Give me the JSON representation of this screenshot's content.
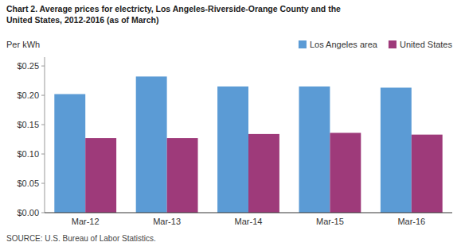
{
  "chart_data": {
    "type": "bar",
    "title": "Chart 2. Average prices for electricty, Los Angeles-Riverside-Orange County and the\nUnited States, 2012-2016 (as of March)",
    "ylabel": "Per kWh",
    "annotations": [
      "SOURCE: U.S. Bureau of Labor Statistics."
    ],
    "categories": [
      "Mar-12",
      "Mar-13",
      "Mar-14",
      "Mar-15",
      "Mar-16"
    ],
    "series": [
      {
        "name": "Los Angeles area",
        "color": "#5B9BD5",
        "values": [
          0.202,
          0.232,
          0.215,
          0.215,
          0.213
        ]
      },
      {
        "name": "United States",
        "color": "#9E3A7A",
        "values": [
          0.127,
          0.127,
          0.134,
          0.136,
          0.133
        ]
      }
    ],
    "ylim": [
      0.0,
      0.265
    ],
    "yticks": [
      {
        "value": 0.0,
        "label": "$0.00"
      },
      {
        "value": 0.05,
        "label": "$0.05"
      },
      {
        "value": 0.1,
        "label": "$0.10"
      },
      {
        "value": 0.15,
        "label": "$0.15"
      },
      {
        "value": 0.2,
        "label": "$0.20"
      },
      {
        "value": 0.25,
        "label": "$0.25"
      }
    ],
    "grid": false,
    "legend": "upper right"
  }
}
